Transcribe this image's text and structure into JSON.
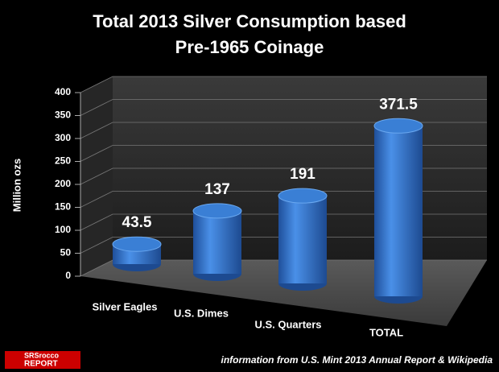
{
  "chart_data": {
    "type": "bar",
    "title": [
      "Total 2013 Silver Consumption based",
      "Pre-1965 Coinage"
    ],
    "y_label": "Million ozs",
    "categories": [
      "Silver Eagles",
      "U.S. Dimes",
      "U.S. Quarters",
      "TOTAL"
    ],
    "values": [
      43.5,
      137,
      191,
      371.5
    ],
    "color": "#3a7fd5",
    "ylim": [
      0,
      400
    ],
    "yticks": [
      0,
      50,
      100,
      150,
      200,
      250,
      300,
      350,
      400
    ],
    "grid": true,
    "source": "information from U.S. Mint 2013 Annual Report & Wikipedia",
    "logo": [
      "SRSrocco",
      "REPORT"
    ]
  }
}
